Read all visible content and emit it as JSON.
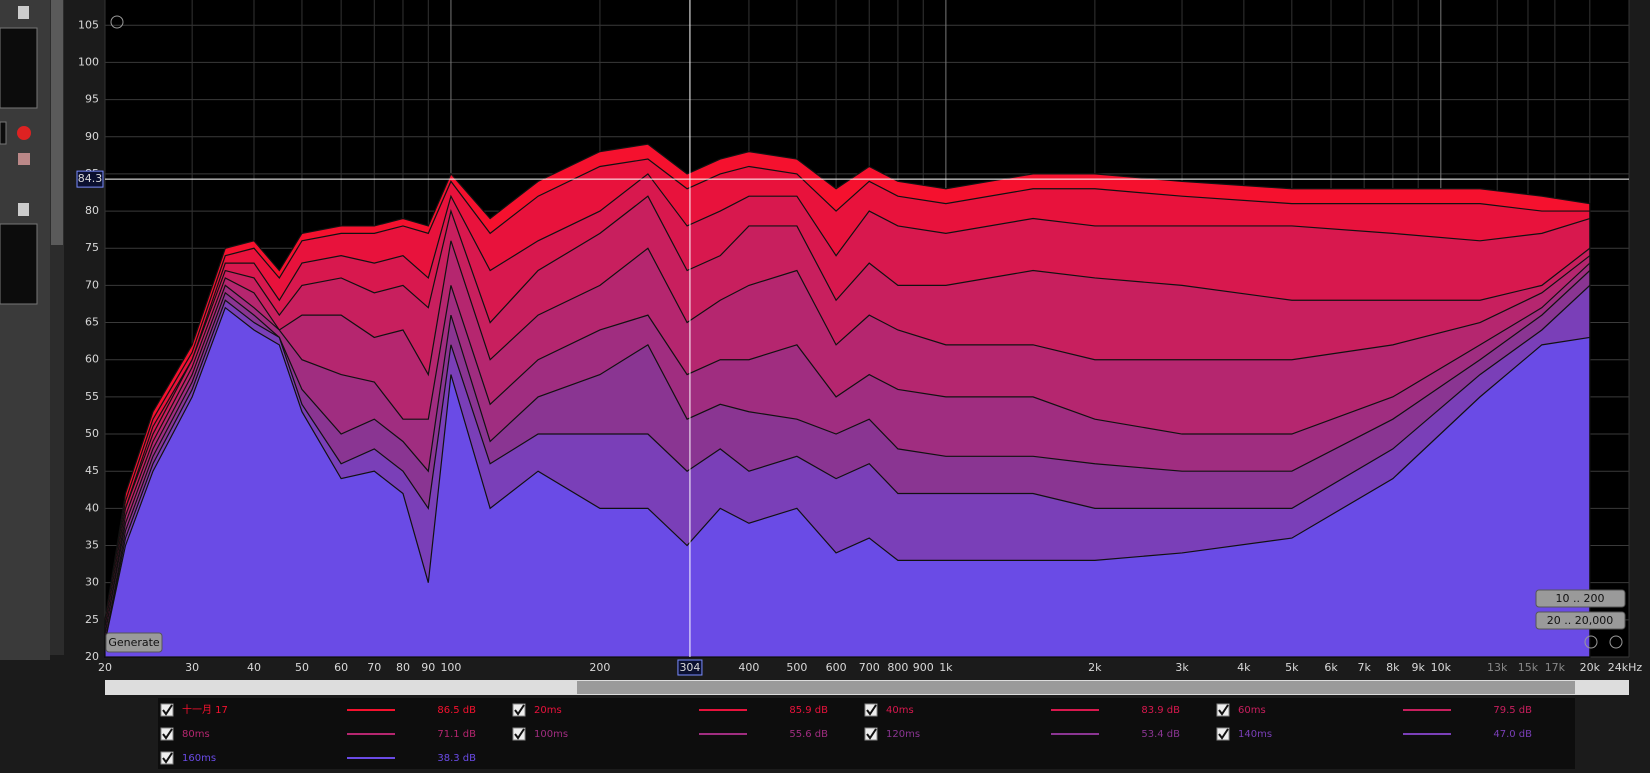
{
  "chart_data": {
    "type": "area",
    "log_x": true,
    "grid": true,
    "xlim": [
      20,
      24000
    ],
    "ylim": [
      20,
      108.4
    ],
    "xticks": [
      20,
      30,
      40,
      50,
      60,
      70,
      80,
      90,
      100,
      200,
      400,
      500,
      600,
      700,
      800,
      900,
      {
        "value": 1000,
        "label": "1k"
      },
      {
        "value": 2000,
        "label": "2k"
      },
      {
        "value": 3000,
        "label": "3k"
      },
      {
        "value": 4000,
        "label": "4k"
      },
      {
        "value": 5000,
        "label": "5k"
      },
      {
        "value": 6000,
        "label": "6k"
      },
      {
        "value": 7000,
        "label": "7k"
      },
      {
        "value": 8000,
        "label": "8k"
      },
      {
        "value": 9000,
        "label": "9k"
      },
      {
        "value": 10000,
        "label": "10k"
      },
      {
        "value": 13000,
        "label": "13k"
      },
      {
        "value": 15000,
        "label": "15k"
      },
      {
        "value": 17000,
        "label": "17k"
      },
      {
        "value": 20000,
        "label": "20k"
      },
      {
        "value": 24000,
        "label": "24kHz"
      }
    ],
    "yticks": [
      20,
      25,
      30,
      35,
      40,
      45,
      50,
      55,
      60,
      65,
      70,
      75,
      80,
      85,
      90,
      95,
      100,
      105
    ],
    "x": [
      20,
      22,
      25,
      30,
      35,
      40,
      45,
      50,
      60,
      70,
      80,
      90,
      100,
      120,
      150,
      200,
      250,
      300,
      350,
      400,
      500,
      600,
      700,
      800,
      1000,
      1500,
      2000,
      3000,
      5000,
      8000,
      12000,
      16000,
      20000
    ],
    "series": [
      {
        "name": "十一月 17",
        "color": "#f5112e",
        "legend_value": "86.5 dB",
        "values": [
          25,
          42,
          53,
          62,
          75,
          76,
          72,
          77,
          78,
          78,
          79,
          78,
          85,
          79,
          84,
          88,
          89,
          85,
          87,
          88,
          87,
          83,
          86,
          84,
          83,
          85,
          85,
          84,
          83,
          83,
          83,
          82,
          81
        ]
      },
      {
        "name": "20ms",
        "color": "#e8123c",
        "legend_value": "85.9 dB",
        "values": [
          25,
          41,
          52,
          61,
          74,
          75,
          71,
          76,
          77,
          77,
          78,
          77,
          84,
          77,
          82,
          86,
          87,
          83,
          85,
          86,
          85,
          80,
          84,
          82,
          81,
          83,
          83,
          82,
          81,
          81,
          81,
          80,
          80
        ]
      },
      {
        "name": "40ms",
        "color": "#d8184e",
        "legend_value": "83.9 dB",
        "values": [
          24,
          40,
          51,
          60,
          73,
          73,
          68,
          73,
          74,
          73,
          74,
          71,
          82,
          72,
          76,
          80,
          85,
          78,
          80,
          82,
          82,
          74,
          80,
          78,
          77,
          79,
          78,
          78,
          78,
          77,
          76,
          77,
          79
        ]
      },
      {
        "name": "60ms",
        "color": "#c81f5e",
        "legend_value": "79.5 dB",
        "values": [
          24,
          40,
          50,
          60,
          72,
          71,
          66,
          70,
          71,
          69,
          70,
          67,
          80,
          65,
          72,
          77,
          82,
          72,
          74,
          78,
          78,
          68,
          73,
          70,
          70,
          72,
          71,
          70,
          68,
          68,
          68,
          70,
          75
        ]
      },
      {
        "name": "80ms",
        "color": "#b5266f",
        "legend_value": "71.1 dB",
        "values": [
          23,
          39,
          49,
          59,
          71,
          69,
          64,
          66,
          66,
          63,
          64,
          58,
          76,
          60,
          66,
          70,
          75,
          65,
          68,
          70,
          72,
          62,
          66,
          64,
          62,
          62,
          60,
          60,
          60,
          62,
          65,
          69,
          74
        ]
      },
      {
        "name": "100ms",
        "color": "#a02d80",
        "legend_value": "55.6 dB",
        "values": [
          23,
          38,
          48,
          58,
          70,
          67,
          64,
          60,
          58,
          57,
          52,
          52,
          70,
          54,
          60,
          64,
          66,
          58,
          60,
          60,
          62,
          55,
          58,
          56,
          55,
          55,
          52,
          50,
          50,
          55,
          62,
          67,
          73
        ]
      },
      {
        "name": "120ms",
        "color": "#8a3592",
        "legend_value": "53.4 dB",
        "values": [
          22,
          37,
          47,
          57,
          69,
          66,
          63,
          56,
          50,
          52,
          49,
          45,
          66,
          49,
          55,
          58,
          62,
          52,
          54,
          53,
          52,
          50,
          52,
          48,
          47,
          47,
          46,
          45,
          45,
          52,
          60,
          66,
          72
        ]
      },
      {
        "name": "140ms",
        "color": "#7a3fb8",
        "legend_value": "47.0 dB",
        "values": [
          22,
          36,
          46,
          56,
          68,
          65,
          63,
          54,
          46,
          48,
          45,
          40,
          62,
          46,
          50,
          50,
          50,
          45,
          48,
          45,
          47,
          44,
          46,
          42,
          42,
          42,
          40,
          40,
          40,
          48,
          58,
          64,
          70
        ]
      },
      {
        "name": "160ms",
        "color": "#6a4be6",
        "legend_value": "38.3 dB",
        "values": [
          22,
          35,
          45,
          55,
          67,
          64,
          62,
          53,
          44,
          45,
          42,
          30,
          58,
          40,
          45,
          40,
          40,
          35,
          40,
          38,
          40,
          34,
          36,
          33,
          33,
          33,
          33,
          34,
          36,
          44,
          55,
          62,
          63
        ]
      }
    ],
    "cursor": {
      "x": 304,
      "y": 84.3
    }
  },
  "buttons": {
    "generate": "Generate",
    "range_low": "10 .. 200",
    "range_full": "20 .. 20,000"
  }
}
